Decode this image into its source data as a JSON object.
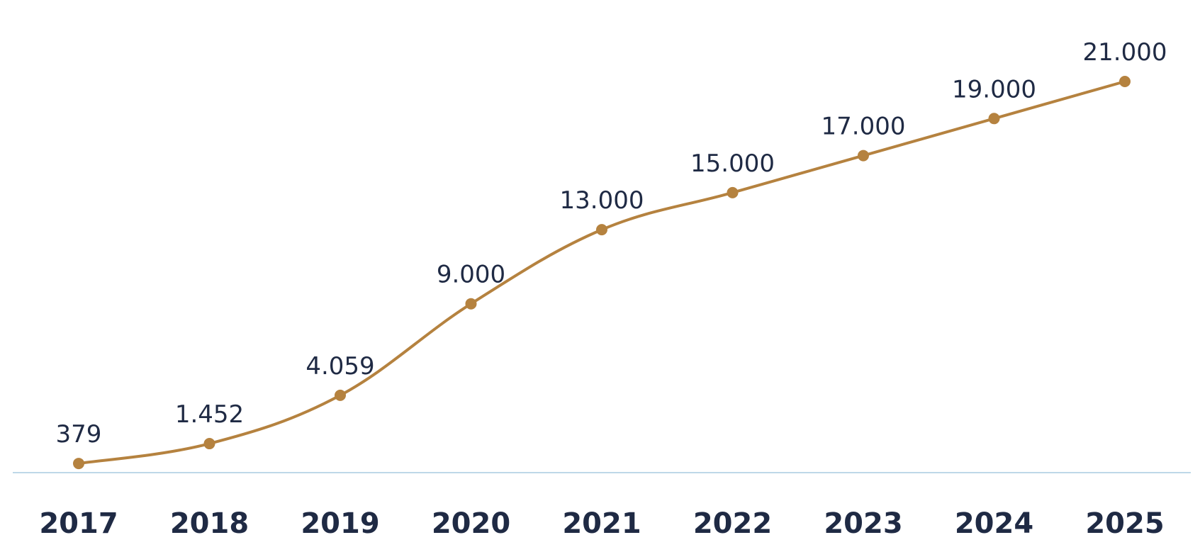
{
  "chart_data": {
    "type": "line",
    "categories": [
      "2017",
      "2018",
      "2019",
      "2020",
      "2021",
      "2022",
      "2023",
      "2024",
      "2025"
    ],
    "values": [
      379,
      1452,
      4059,
      9000,
      13000,
      15000,
      17000,
      19000,
      21000
    ],
    "data_labels": [
      "379",
      "1.452",
      "4.059",
      "9.000",
      "13.000",
      "15.000",
      "17.000",
      "19.000",
      "21.000"
    ],
    "title": "",
    "xlabel": "",
    "ylabel": "",
    "ylim": [
      0,
      21000
    ],
    "grid": false,
    "legend": "none",
    "smooth": true,
    "markers": true,
    "colors": {
      "line": "#b5823f",
      "axis": "#a9cbe0",
      "text": "#1f2a44"
    }
  }
}
